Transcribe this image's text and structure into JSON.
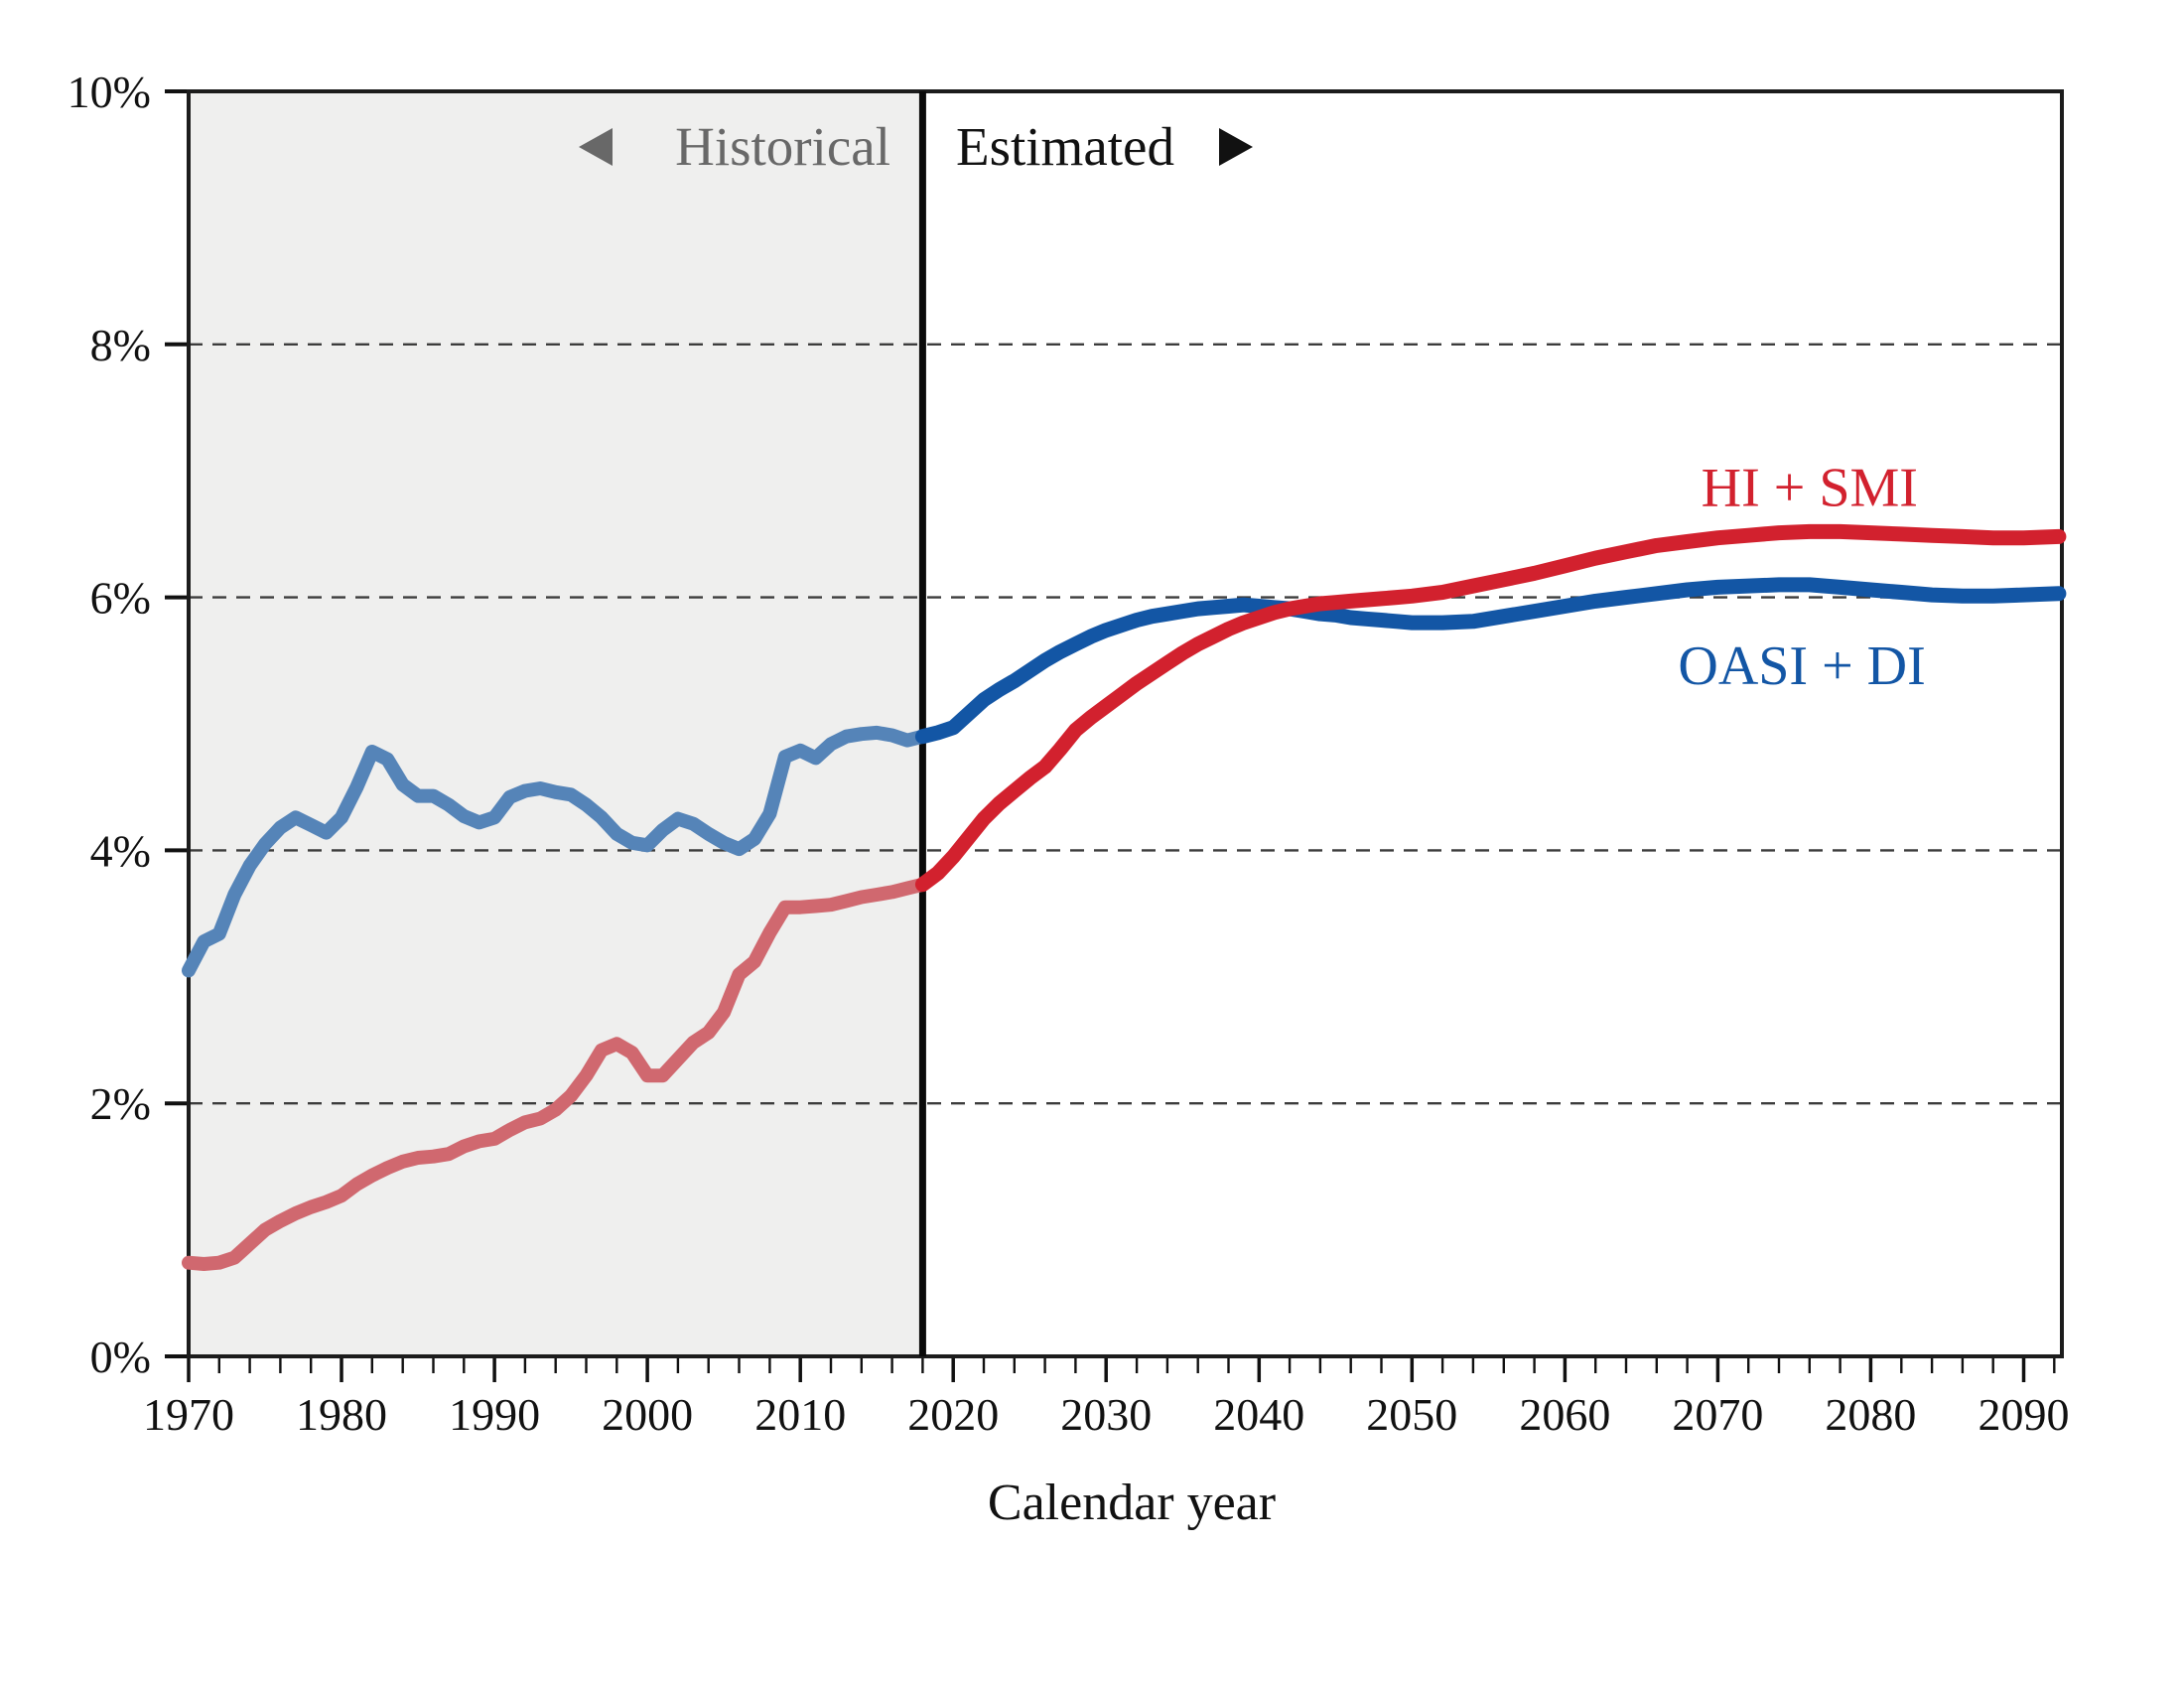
{
  "chart_data": {
    "type": "line",
    "title": "",
    "xlabel": "Calendar year",
    "ylabel": "",
    "xlim": [
      1970,
      2092.5
    ],
    "ylim": [
      0,
      10
    ],
    "grid": "dashed horizontal at 2,4,6,8",
    "gridline_values": [
      2,
      4,
      6,
      8
    ],
    "x_minor_tick_step": 2,
    "x_decade_ticks": [
      1970,
      1980,
      1990,
      2000,
      2010,
      2020,
      2030,
      2040,
      2050,
      2060,
      2070,
      2080,
      2090
    ],
    "y_ticks": [
      {
        "value": 0,
        "label": "0%"
      },
      {
        "value": 2,
        "label": "2%"
      },
      {
        "value": 4,
        "label": "4%"
      },
      {
        "value": 6,
        "label": "6%"
      },
      {
        "value": 8,
        "label": "8%"
      },
      {
        "value": 10,
        "label": "10%"
      }
    ],
    "divider_year": 2018,
    "historical_region_color": "#efefee",
    "regions": {
      "historical_label": "Historical",
      "estimated_label": "Estimated",
      "historical_label_color": "#686868",
      "estimated_label_color": "#111111"
    },
    "series": [
      {
        "name": "OASI + DI",
        "color_historical": "#5584b8",
        "color_estimated": "#1356a5",
        "label_anchor": {
          "year": 2075.5,
          "value": 5.47
        },
        "points_historical": [
          [
            1970,
            3.05
          ],
          [
            1971,
            3.28
          ],
          [
            1972,
            3.34
          ],
          [
            1973,
            3.65
          ],
          [
            1974,
            3.88
          ],
          [
            1975,
            4.05
          ],
          [
            1976,
            4.18
          ],
          [
            1977,
            4.26
          ],
          [
            1978,
            4.2
          ],
          [
            1979,
            4.14
          ],
          [
            1980,
            4.26
          ],
          [
            1981,
            4.5
          ],
          [
            1982,
            4.78
          ],
          [
            1983,
            4.72
          ],
          [
            1984,
            4.52
          ],
          [
            1985,
            4.43
          ],
          [
            1986,
            4.43
          ],
          [
            1987,
            4.36
          ],
          [
            1988,
            4.27
          ],
          [
            1989,
            4.22
          ],
          [
            1990,
            4.26
          ],
          [
            1991,
            4.42
          ],
          [
            1992,
            4.47
          ],
          [
            1993,
            4.49
          ],
          [
            1994,
            4.46
          ],
          [
            1995,
            4.44
          ],
          [
            1996,
            4.36
          ],
          [
            1997,
            4.26
          ],
          [
            1998,
            4.13
          ],
          [
            1999,
            4.06
          ],
          [
            2000,
            4.04
          ],
          [
            2001,
            4.16
          ],
          [
            2002,
            4.25
          ],
          [
            2003,
            4.21
          ],
          [
            2004,
            4.13
          ],
          [
            2005,
            4.06
          ],
          [
            2006,
            4.01
          ],
          [
            2007,
            4.09
          ],
          [
            2008,
            4.29
          ],
          [
            2009,
            4.74
          ],
          [
            2010,
            4.79
          ],
          [
            2011,
            4.73
          ],
          [
            2012,
            4.84
          ],
          [
            2013,
            4.9
          ],
          [
            2014,
            4.92
          ],
          [
            2015,
            4.93
          ],
          [
            2016,
            4.91
          ],
          [
            2017,
            4.87
          ],
          [
            2018,
            4.9
          ]
        ],
        "points_estimated": [
          [
            2018,
            4.9
          ],
          [
            2019,
            4.93
          ],
          [
            2020,
            4.97
          ],
          [
            2021,
            5.08
          ],
          [
            2022,
            5.19
          ],
          [
            2023,
            5.27
          ],
          [
            2024,
            5.34
          ],
          [
            2025,
            5.42
          ],
          [
            2026,
            5.5
          ],
          [
            2027,
            5.57
          ],
          [
            2028,
            5.63
          ],
          [
            2029,
            5.69
          ],
          [
            2030,
            5.74
          ],
          [
            2031,
            5.78
          ],
          [
            2032,
            5.82
          ],
          [
            2033,
            5.85
          ],
          [
            2034,
            5.87
          ],
          [
            2035,
            5.89
          ],
          [
            2036,
            5.91
          ],
          [
            2037,
            5.92
          ],
          [
            2038,
            5.93
          ],
          [
            2039,
            5.94
          ],
          [
            2040,
            5.93
          ],
          [
            2041,
            5.92
          ],
          [
            2042,
            5.91
          ],
          [
            2043,
            5.89
          ],
          [
            2044,
            5.87
          ],
          [
            2045,
            5.86
          ],
          [
            2046,
            5.84
          ],
          [
            2047,
            5.83
          ],
          [
            2048,
            5.82
          ],
          [
            2049,
            5.81
          ],
          [
            2050,
            5.8
          ],
          [
            2052,
            5.8
          ],
          [
            2054,
            5.81
          ],
          [
            2056,
            5.85
          ],
          [
            2058,
            5.89
          ],
          [
            2060,
            5.93
          ],
          [
            2062,
            5.97
          ],
          [
            2064,
            6.0
          ],
          [
            2066,
            6.03
          ],
          [
            2068,
            6.06
          ],
          [
            2070,
            6.08
          ],
          [
            2072,
            6.09
          ],
          [
            2074,
            6.1
          ],
          [
            2076,
            6.1
          ],
          [
            2078,
            6.08
          ],
          [
            2080,
            6.06
          ],
          [
            2082,
            6.04
          ],
          [
            2084,
            6.02
          ],
          [
            2086,
            6.01
          ],
          [
            2088,
            6.01
          ],
          [
            2090,
            6.02
          ],
          [
            2092.3,
            6.03
          ]
        ]
      },
      {
        "name": "HI + SMI",
        "color_historical": "#d0686f",
        "color_estimated": "#d2212e",
        "label_anchor": {
          "year": 2076,
          "value": 6.88
        },
        "points_historical": [
          [
            1970,
            0.74
          ],
          [
            1971,
            0.73
          ],
          [
            1972,
            0.74
          ],
          [
            1973,
            0.78
          ],
          [
            1974,
            0.89
          ],
          [
            1975,
            1.0
          ],
          [
            1976,
            1.07
          ],
          [
            1977,
            1.13
          ],
          [
            1978,
            1.18
          ],
          [
            1979,
            1.22
          ],
          [
            1980,
            1.27
          ],
          [
            1981,
            1.36
          ],
          [
            1982,
            1.43
          ],
          [
            1983,
            1.49
          ],
          [
            1984,
            1.54
          ],
          [
            1985,
            1.57
          ],
          [
            1986,
            1.58
          ],
          [
            1987,
            1.6
          ],
          [
            1988,
            1.66
          ],
          [
            1989,
            1.7
          ],
          [
            1990,
            1.72
          ],
          [
            1991,
            1.79
          ],
          [
            1992,
            1.85
          ],
          [
            1993,
            1.88
          ],
          [
            1994,
            1.95
          ],
          [
            1995,
            2.06
          ],
          [
            1996,
            2.22
          ],
          [
            1997,
            2.42
          ],
          [
            1998,
            2.47
          ],
          [
            1999,
            2.4
          ],
          [
            2000,
            2.22
          ],
          [
            2001,
            2.22
          ],
          [
            2002,
            2.35
          ],
          [
            2003,
            2.48
          ],
          [
            2004,
            2.56
          ],
          [
            2005,
            2.72
          ],
          [
            2006,
            3.02
          ],
          [
            2007,
            3.12
          ],
          [
            2008,
            3.35
          ],
          [
            2009,
            3.55
          ],
          [
            2010,
            3.55
          ],
          [
            2011,
            3.56
          ],
          [
            2012,
            3.57
          ],
          [
            2013,
            3.6
          ],
          [
            2014,
            3.63
          ],
          [
            2015,
            3.65
          ],
          [
            2016,
            3.67
          ],
          [
            2017,
            3.7
          ],
          [
            2018,
            3.73
          ]
        ],
        "points_estimated": [
          [
            2018,
            3.73
          ],
          [
            2019,
            3.82
          ],
          [
            2020,
            3.95
          ],
          [
            2021,
            4.1
          ],
          [
            2022,
            4.25
          ],
          [
            2023,
            4.37
          ],
          [
            2024,
            4.47
          ],
          [
            2025,
            4.57
          ],
          [
            2026,
            4.66
          ],
          [
            2027,
            4.8
          ],
          [
            2028,
            4.95
          ],
          [
            2029,
            5.05
          ],
          [
            2030,
            5.14
          ],
          [
            2031,
            5.23
          ],
          [
            2032,
            5.32
          ],
          [
            2033,
            5.4
          ],
          [
            2034,
            5.48
          ],
          [
            2035,
            5.56
          ],
          [
            2036,
            5.63
          ],
          [
            2037,
            5.69
          ],
          [
            2038,
            5.75
          ],
          [
            2039,
            5.8
          ],
          [
            2040,
            5.84
          ],
          [
            2041,
            5.88
          ],
          [
            2042,
            5.91
          ],
          [
            2043,
            5.93
          ],
          [
            2044,
            5.95
          ],
          [
            2045,
            5.96
          ],
          [
            2046,
            5.97
          ],
          [
            2047,
            5.98
          ],
          [
            2048,
            5.99
          ],
          [
            2049,
            6.0
          ],
          [
            2050,
            6.01
          ],
          [
            2052,
            6.04
          ],
          [
            2054,
            6.09
          ],
          [
            2056,
            6.14
          ],
          [
            2058,
            6.19
          ],
          [
            2060,
            6.25
          ],
          [
            2062,
            6.31
          ],
          [
            2064,
            6.36
          ],
          [
            2066,
            6.41
          ],
          [
            2068,
            6.44
          ],
          [
            2070,
            6.47
          ],
          [
            2072,
            6.49
          ],
          [
            2074,
            6.51
          ],
          [
            2076,
            6.52
          ],
          [
            2078,
            6.52
          ],
          [
            2080,
            6.51
          ],
          [
            2082,
            6.5
          ],
          [
            2084,
            6.49
          ],
          [
            2086,
            6.48
          ],
          [
            2088,
            6.47
          ],
          [
            2090,
            6.47
          ],
          [
            2092.3,
            6.48
          ]
        ]
      }
    ]
  }
}
